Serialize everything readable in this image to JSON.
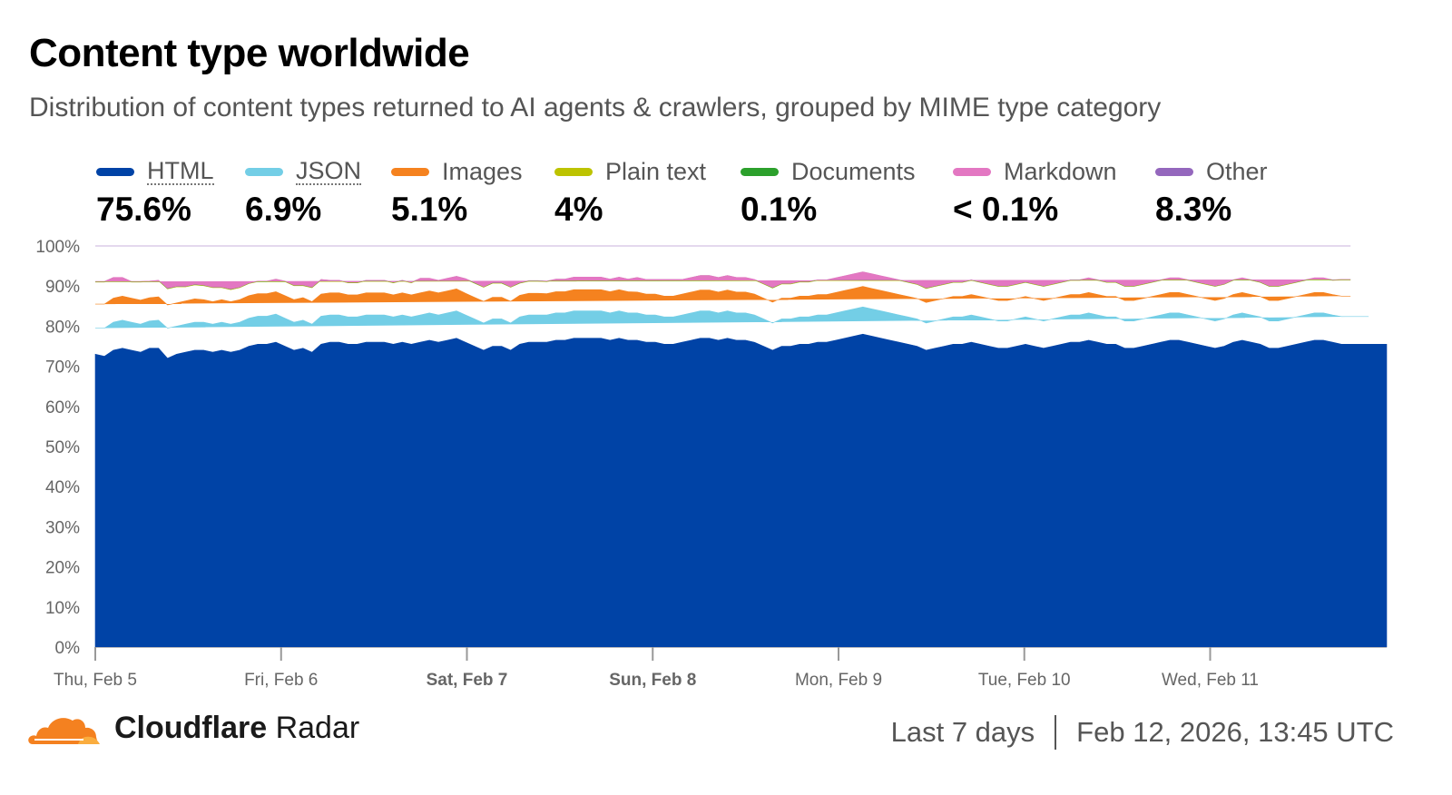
{
  "title": "Content type worldwide",
  "subtitle": "Distribution of content types returned to AI agents & crawlers, grouped by MIME type category",
  "legend": [
    {
      "name": "HTML",
      "value": "75.6%",
      "color": "#0043a6",
      "dotted": true
    },
    {
      "name": "JSON",
      "value": "6.9%",
      "color": "#73cee6",
      "dotted": true
    },
    {
      "name": "Images",
      "value": "5.1%",
      "color": "#f5821f",
      "dotted": false
    },
    {
      "name": "Plain text",
      "value": "4%",
      "color": "#bdc300",
      "dotted": false
    },
    {
      "name": "Documents",
      "value": "0.1%",
      "color": "#2ca02c",
      "dotted": false
    },
    {
      "name": "Markdown",
      "value": "< 0.1%",
      "color": "#e377c2",
      "dotted": false
    },
    {
      "name": "Other",
      "value": "8.3%",
      "color": "#9467bd",
      "dotted": false
    }
  ],
  "chart_data": {
    "type": "area",
    "stacked": true,
    "title": "Content type worldwide",
    "y_ticks": [
      "0%",
      "10%",
      "20%",
      "30%",
      "40%",
      "50%",
      "60%",
      "70%",
      "80%",
      "90%",
      "100%"
    ],
    "ylim": [
      0,
      100
    ],
    "x_ticks": [
      {
        "label": "Thu, Feb 5",
        "day": 0,
        "bold": false
      },
      {
        "label": "Fri, Feb 6",
        "day": 1,
        "bold": false
      },
      {
        "label": "Sat, Feb 7",
        "day": 2,
        "bold": true
      },
      {
        "label": "Sun, Feb 8",
        "day": 3,
        "bold": true
      },
      {
        "label": "Mon, Feb 9",
        "day": 4,
        "bold": false
      },
      {
        "label": "Tue, Feb 10",
        "day": 5,
        "bold": false
      },
      {
        "label": "Wed, Feb 11",
        "day": 6,
        "bold": false
      }
    ],
    "x_range_days": [
      0,
      6.95
    ],
    "series": [
      {
        "name": "HTML",
        "color": "#0043a6",
        "values": [
          73,
          72.5,
          74,
          74.5,
          74,
          73.5,
          74.5,
          74.5,
          72,
          73,
          73.5,
          74,
          74,
          73.5,
          74,
          73.5,
          74,
          75,
          75.5,
          75.5,
          76,
          75,
          74,
          74.5,
          73.5,
          75.5,
          76,
          76,
          75.5,
          75.5,
          76,
          76,
          76,
          75.5,
          76,
          75.5,
          76,
          76.5,
          76,
          76.5,
          77,
          76,
          75,
          74,
          75,
          75,
          74,
          75.5,
          76,
          76,
          76,
          76.5,
          76.5,
          77,
          77,
          77,
          77,
          76.5,
          77,
          76.5,
          76.5,
          76,
          76,
          75.5,
          75.5,
          76,
          76.5,
          77,
          77,
          76.5,
          77,
          76.5,
          76.5,
          76,
          75,
          74,
          75,
          75,
          75.5,
          75.5,
          76,
          76,
          76.5,
          77,
          77.5,
          78,
          77.5,
          77,
          76.5,
          76,
          75.5,
          75,
          74,
          74.5,
          75,
          75.5,
          75.5,
          76,
          75.5,
          75,
          74.5,
          74.5,
          75,
          75.5,
          75,
          74.5,
          75,
          75.5,
          76,
          76,
          76.5,
          76,
          75.5,
          75.5,
          74.5,
          74.5,
          75,
          75.5,
          76,
          76.5,
          76.5,
          76,
          75.5,
          75,
          74.5,
          75,
          76,
          76.5,
          76,
          75.5,
          74.5,
          74.5,
          75,
          75.5,
          76,
          76.5,
          76.5,
          76,
          75.5,
          75.5,
          75.5,
          75.5,
          75.5,
          75.5
        ]
      },
      {
        "name": "JSON",
        "color": "#73cee6",
        "values": [
          6.5,
          7,
          7,
          7,
          7,
          7,
          6.8,
          7,
          7.5,
          7,
          7,
          7,
          7,
          7,
          7,
          7,
          7,
          7,
          7,
          7,
          7,
          7,
          7,
          7,
          7,
          7,
          6.8,
          6.8,
          6.8,
          6.8,
          6.8,
          6.8,
          6.8,
          6.8,
          6.8,
          6.8,
          6.8,
          6.8,
          6.8,
          6.8,
          6.8,
          6.8,
          6.8,
          6.8,
          6.8,
          6.8,
          6.8,
          6.8,
          6.8,
          6.8,
          6.8,
          6.8,
          6.8,
          6.8,
          6.8,
          6.8,
          6.8,
          6.8,
          6.8,
          6.8,
          6.8,
          6.8,
          6.8,
          6.8,
          6.8,
          6.8,
          6.8,
          6.8,
          6.8,
          6.8,
          6.8,
          6.8,
          6.8,
          6.8,
          6.8,
          6.8,
          6.8,
          6.8,
          6.8,
          6.8,
          6.8,
          6.8,
          6.8,
          6.8,
          6.8,
          6.8,
          6.8,
          6.8,
          6.8,
          6.8,
          6.8,
          6.8,
          6.8,
          6.8,
          6.8,
          6.8,
          6.8,
          6.8,
          6.8,
          6.8,
          6.8,
          6.8,
          6.8,
          6.8,
          6.8,
          6.8,
          6.8,
          6.8,
          6.8,
          6.8,
          6.8,
          6.8,
          6.8,
          6.8,
          6.8,
          6.8,
          6.8,
          6.8,
          6.8,
          6.8,
          6.8,
          6.8,
          6.8,
          6.8,
          6.8,
          6.8,
          6.8,
          6.8,
          6.8,
          6.8,
          6.8,
          6.8,
          6.8,
          6.8,
          6.8,
          6.8,
          6.8,
          6.8,
          6.9,
          6.9,
          6.9,
          6.9
        ]
      },
      {
        "name": "Images",
        "color": "#f5821f",
        "values": [
          6,
          6,
          6,
          6,
          6,
          6,
          5.8,
          5.8,
          5.8,
          5.8,
          5.8,
          5.8,
          5.6,
          5.6,
          5.6,
          5.6,
          5.6,
          5.6,
          5.6,
          5.6,
          5.6,
          5.6,
          5.6,
          5.6,
          5.6,
          5.5,
          5.5,
          5.5,
          5.5,
          5.5,
          5.5,
          5.5,
          5.5,
          5.5,
          5.5,
          5.5,
          5.5,
          5.5,
          5.5,
          5.5,
          5.5,
          5.4,
          5.4,
          5.4,
          5.4,
          5.4,
          5.4,
          5.4,
          5.4,
          5.4,
          5.3,
          5.3,
          5.3,
          5.3,
          5.3,
          5.3,
          5.3,
          5.3,
          5.3,
          5.3,
          5.2,
          5.2,
          5.2,
          5.2,
          5.2,
          5.2,
          5.2,
          5.2,
          5.2,
          5.2,
          5.2,
          5.2,
          5.2,
          5.2,
          5.2,
          5.2,
          5.2,
          5.2,
          5.2,
          5.2,
          5.1,
          5.1,
          5.1,
          5.1,
          5.1,
          5.1,
          5.1,
          5.1,
          5.1,
          5.1,
          5.1,
          5.1,
          5.1,
          5.1,
          5.1,
          5.1,
          5.1,
          5.1,
          5.1,
          5.1,
          5.1,
          5.1,
          5.1,
          5.1,
          5.1,
          5.1,
          5.1,
          5.1,
          5.1,
          5.1,
          5.1,
          5.1,
          5.1,
          5.1,
          5.1,
          5.1,
          5.1,
          5.1,
          5.1,
          5.1,
          5.1,
          5.1,
          5.1,
          5.1,
          5.1,
          5.1,
          5.1,
          5.1,
          5.1,
          5.1,
          5.1,
          5.1,
          5.1,
          5.1,
          5.1,
          5.1,
          5.1,
          5.1,
          5.1,
          5.1
        ]
      },
      {
        "name": "Plain text",
        "color": "#bdc300",
        "values": [
          5.5,
          5.5,
          5,
          4.5,
          4,
          4.5,
          4,
          4,
          4,
          4,
          3.5,
          3.5,
          3.5,
          3.5,
          3,
          3,
          3,
          3,
          3,
          3,
          3,
          3.5,
          3.5,
          3,
          3.5,
          3.5,
          3,
          3,
          3,
          3,
          3,
          3,
          3,
          3,
          3,
          3,
          3.5,
          3,
          3,
          3,
          3,
          3.5,
          3.5,
          3.5,
          3.5,
          3.5,
          3.5,
          3,
          3,
          3,
          3,
          3,
          3,
          3,
          3,
          3,
          3,
          3,
          3,
          3,
          3.5,
          3.5,
          3.5,
          4,
          4,
          3.5,
          3.5,
          3.5,
          3.5,
          3.5,
          3.5,
          3.5,
          3.5,
          3.5,
          3.5,
          3.5,
          3.5,
          3.5,
          3.5,
          3.5,
          3.5,
          3.5,
          3.5,
          3.5,
          3.5,
          3.5,
          3.5,
          3.5,
          3.5,
          3.5,
          3.5,
          3.5,
          3.5,
          3.5,
          3.5,
          3.5,
          3.5,
          3.5,
          3.5,
          3.5,
          3.5,
          3.5,
          3.5,
          3.5,
          3.5,
          3.5,
          3.5,
          3.5,
          3.5,
          3.5,
          3.5,
          3.5,
          3.5,
          3.5,
          3.5,
          3.5,
          3.5,
          3.5,
          3.5,
          3.5,
          3.5,
          3.5,
          3.5,
          3.5,
          3.5,
          3.5,
          3.5,
          3.5,
          3.5,
          3.5,
          3.5,
          3.5,
          3.5,
          3.5,
          3.5,
          3.5,
          3.5,
          3.5,
          4,
          4,
          4,
          4
        ]
      },
      {
        "name": "Documents",
        "color": "#2ca02c",
        "values": [
          0.1,
          0.1,
          0.1,
          0.1,
          0.1,
          0.1,
          0.1,
          0.1,
          0.1,
          0.1,
          0.1,
          0.1,
          0.1,
          0.1,
          0.1,
          0.1,
          0.1,
          0.1,
          0.1,
          0.1,
          0.1,
          0.1,
          0.1,
          0.1,
          0.1,
          0.1,
          0.1,
          0.1,
          0.1,
          0.1,
          0.1,
          0.1,
          0.1,
          0.1,
          0.1,
          0.1,
          0.1,
          0.1,
          0.1,
          0.1,
          0.1,
          0.1,
          0.1,
          0.1,
          0.1,
          0.1,
          0.1,
          0.1,
          0.1,
          0.1,
          0.1,
          0.1,
          0.1,
          0.1,
          0.1,
          0.1,
          0.1,
          0.1,
          0.1,
          0.1,
          0.1,
          0.1,
          0.1,
          0.1,
          0.1,
          0.1,
          0.1,
          0.1,
          0.1,
          0.1,
          0.1,
          0.1,
          0.1,
          0.1,
          0.1,
          0.1,
          0.1,
          0.1,
          0.1,
          0.1,
          0.1,
          0.1,
          0.1,
          0.1,
          0.1,
          0.1,
          0.1,
          0.1,
          0.1,
          0.1,
          0.1,
          0.1,
          0.1,
          0.1,
          0.1,
          0.1,
          0.1,
          0.1,
          0.1,
          0.1,
          0.1,
          0.1,
          0.1,
          0.1,
          0.1,
          0.1,
          0.1,
          0.1,
          0.1,
          0.1,
          0.1,
          0.1,
          0.1,
          0.1,
          0.1,
          0.1,
          0.1,
          0.1,
          0.1,
          0.1,
          0.1,
          0.1,
          0.1,
          0.1,
          0.1,
          0.1,
          0.1,
          0.1,
          0.1,
          0.1,
          0.1,
          0.1,
          0.1,
          0.1,
          0.1,
          0.1,
          0.1,
          0.1,
          0.1,
          0.1,
          0.1,
          0.1,
          0.1,
          0.1
        ]
      },
      {
        "name": "Markdown",
        "color": "#e377c2",
        "values": [
          0.05,
          0.05,
          0.05,
          0.05,
          0.05,
          0.05,
          0.05,
          0.05,
          0.05,
          0.05,
          0.05,
          0.05,
          0.05,
          0.05,
          0.05,
          0.05,
          0.05,
          0.05,
          0.05,
          0.05,
          0.05,
          0.05,
          0.05,
          0.05,
          0.05,
          0.05,
          0.05,
          0.05,
          0.05,
          0.05,
          0.05,
          0.05,
          0.05,
          0.05,
          0.05,
          0.05,
          0.05,
          0.05,
          0.05,
          0.05,
          0.05,
          0.05,
          0.05,
          0.05,
          0.05,
          0.05,
          0.05,
          0.05,
          0.05,
          0.05,
          0.05,
          0.05,
          0.05,
          0.05,
          0.05,
          0.05,
          0.05,
          0.05,
          0.05,
          0.05,
          0.05,
          0.05,
          0.05,
          0.05,
          0.05,
          0.05,
          0.05,
          0.05,
          0.05,
          0.05,
          0.05,
          0.05,
          0.05,
          0.05,
          0.05,
          0.05,
          0.05,
          0.05,
          0.05,
          0.05,
          0.05,
          0.05,
          0.05,
          0.05,
          0.05,
          0.05,
          0.05,
          0.05,
          0.05,
          0.05,
          0.05,
          0.05,
          0.05,
          0.05,
          0.05,
          0.05,
          0.05,
          0.05,
          0.05,
          0.05,
          0.05,
          0.05,
          0.05,
          0.05,
          0.05,
          0.05,
          0.05,
          0.05,
          0.05,
          0.05,
          0.05,
          0.05,
          0.05,
          0.05,
          0.05,
          0.05,
          0.05,
          0.05,
          0.05,
          0.05,
          0.05,
          0.05,
          0.05,
          0.05,
          0.05,
          0.05,
          0.05,
          0.05,
          0.05,
          0.05,
          0.05,
          0.05,
          0.05,
          0.05,
          0.05,
          0.05,
          0.05,
          0.05,
          0.05,
          0.05,
          0.05,
          0.05,
          0.05,
          0.05
        ]
      },
      {
        "name": "Other",
        "color": "#9467bd",
        "values": "remainder"
      }
    ]
  },
  "footer": {
    "brand_bold": "Cloudflare",
    "brand_light": "Radar",
    "range": "Last 7 days",
    "timestamp": "Feb 12, 2026, 13:45 UTC"
  }
}
